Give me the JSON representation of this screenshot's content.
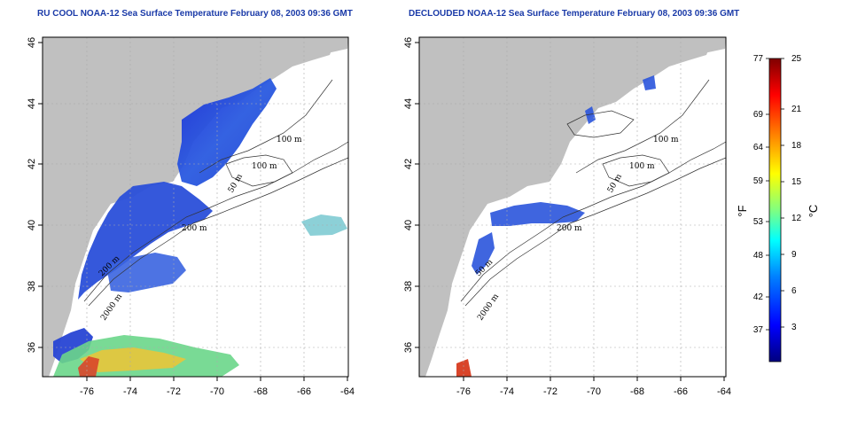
{
  "panels": [
    {
      "title": "RU COOL NOAA-12 Sea Surface Temperature February 08, 2003 09:36 GMT",
      "x_ticks": [
        "-76",
        "-74",
        "-72",
        "-70",
        "-68",
        "-66",
        "-64"
      ],
      "y_ticks": [
        "46",
        "44",
        "42",
        "40",
        "38",
        "36"
      ],
      "contour_labels": [
        "100 m",
        "100 m",
        "200 m",
        "50 m",
        "200 m",
        "2000 m"
      ]
    },
    {
      "title": "DECLOUDED NOAA-12 Sea Surface Temperature February 08, 2003 09:36 GMT",
      "x_ticks": [
        "-76",
        "-74",
        "-72",
        "-70",
        "-68",
        "-66",
        "-64"
      ],
      "y_ticks": [
        "46",
        "44",
        "42",
        "40",
        "38",
        "36"
      ],
      "contour_labels": [
        "100 m",
        "100 m",
        "50 m",
        "200 m",
        "50 m",
        "2000 m"
      ]
    }
  ],
  "colorbar": {
    "fahrenheit_ticks": [
      "77",
      "69",
      "64",
      "59",
      "53",
      "48",
      "42",
      "37"
    ],
    "celsius_ticks": [
      "25",
      "21",
      "18",
      "15",
      "12",
      "9",
      "6",
      "3"
    ],
    "unit_f": "°F",
    "unit_c": "°C",
    "range_c": [
      0,
      25
    ],
    "gradient_colors": [
      "#00007f",
      "#0000ff",
      "#0080ff",
      "#00ffff",
      "#80ff80",
      "#ffff00",
      "#ff8000",
      "#ff0000",
      "#7f0000"
    ]
  },
  "colors": {
    "land": "#c0c0c0",
    "grid": "#aaaaaa",
    "cold_sst": "#1a3ccf",
    "title": "#1a3aa8"
  }
}
